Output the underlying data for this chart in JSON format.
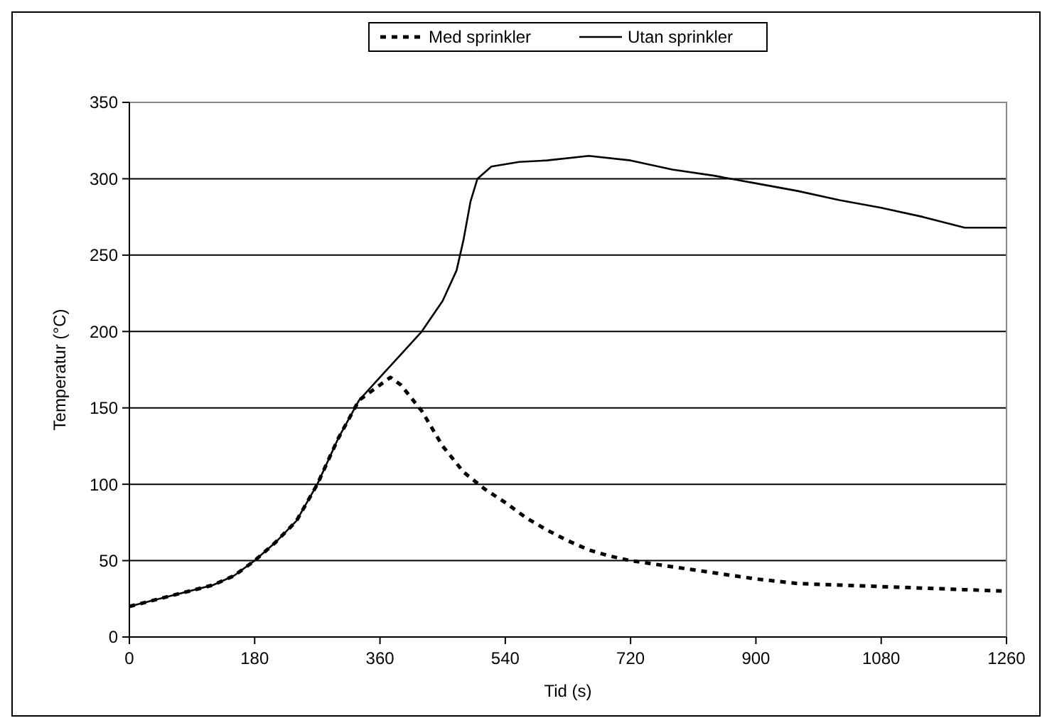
{
  "chart_data": {
    "type": "line",
    "xlabel": "Tid (s)",
    "ylabel": "Temperatur (°C)",
    "xlim": [
      0,
      1260
    ],
    "xticks": [
      0,
      180,
      360,
      540,
      720,
      900,
      1080,
      1260
    ],
    "ylim": [
      0,
      350
    ],
    "yticks": [
      0,
      50,
      100,
      150,
      200,
      250,
      300,
      350
    ],
    "grid": "y",
    "legend": "top",
    "marker": "none",
    "series": [
      {
        "name": "Med sprinkler",
        "color": "#000000",
        "line_style": "dashed",
        "x": [
          0,
          60,
          120,
          150,
          180,
          210,
          240,
          270,
          300,
          330,
          360,
          375,
          390,
          420,
          450,
          480,
          510,
          540,
          570,
          600,
          630,
          660,
          690,
          720,
          780,
          840,
          900,
          960,
          1020,
          1080,
          1140,
          1200,
          1260
        ],
        "values": [
          20,
          27,
          34,
          40,
          50,
          62,
          76,
          100,
          130,
          155,
          165,
          170,
          165,
          148,
          125,
          108,
          97,
          88,
          78,
          70,
          63,
          57,
          53,
          50,
          46,
          42,
          38,
          35,
          34,
          33,
          32,
          31,
          30
        ]
      },
      {
        "name": "Utan sprinkler",
        "color": "#000000",
        "line_style": "solid",
        "x": [
          0,
          60,
          120,
          150,
          180,
          210,
          240,
          270,
          300,
          330,
          360,
          390,
          420,
          450,
          470,
          480,
          490,
          500,
          520,
          560,
          600,
          660,
          720,
          780,
          840,
          900,
          960,
          1020,
          1080,
          1140,
          1200,
          1260
        ],
        "values": [
          20,
          27,
          34,
          40,
          50,
          62,
          76,
          100,
          130,
          155,
          170,
          185,
          200,
          220,
          240,
          260,
          285,
          300,
          308,
          311,
          312,
          315,
          312,
          306,
          302,
          297,
          292,
          286,
          281,
          275,
          268,
          268
        ]
      }
    ]
  }
}
